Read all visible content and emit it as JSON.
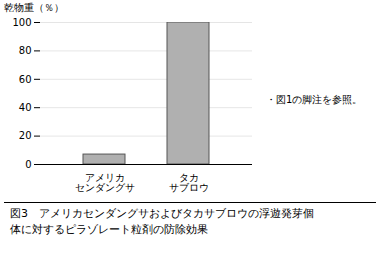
{
  "chart_data": {
    "type": "bar",
    "categories": [
      "アメリカ\nセンダングサ",
      "タカ\nサブロウ"
    ],
    "values": [
      7,
      100
    ],
    "color": "#b0b0b0",
    "ylabel": "乾物重（％）",
    "ylim": [
      0,
      100
    ],
    "yticks": [
      0,
      20,
      40,
      60,
      80,
      100
    ],
    "grid": true,
    "annotations": [
      "・図1の脚注を参照。"
    ],
    "caption": [
      "図3　アメリカセンダングサおよびタカサブロウの浮遊発芽個",
      "体に対するピラゾレート粒剤の防除効果"
    ]
  }
}
